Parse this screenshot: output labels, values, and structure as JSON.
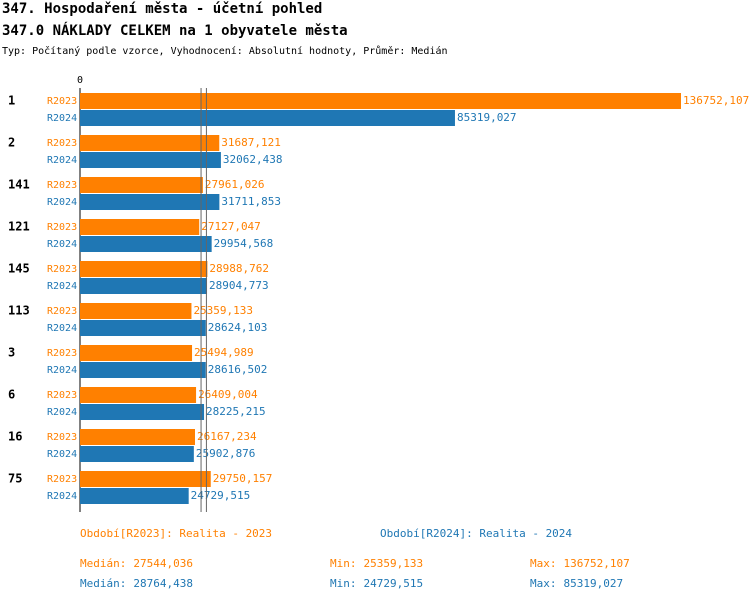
{
  "chart_data": {
    "type": "bar",
    "title": "347. Hospodaření města - účetní pohled",
    "subtitle": "347.0 NÁKLADY CELKEM na 1 obyvatele města",
    "note": "Typ: Počítaný podle vzorce, Vyhodnocení: Absolutní hodnoty, Průměr: Medián",
    "categories": [
      "1",
      "2",
      "141",
      "121",
      "145",
      "113",
      "3",
      "6",
      "16",
      "75"
    ],
    "xlim": [
      0,
      136752.107
    ],
    "xticks": [
      0
    ],
    "stat_names": [
      "Medián:",
      "Min:",
      "Max:"
    ],
    "series": [
      {
        "name": "R2023",
        "legend": "Období[R2023]: Realita - 2023",
        "color": "#ff8000",
        "values": [
          136752.107,
          31687.121,
          27961.026,
          27127.047,
          28988.762,
          25359.133,
          25494.989,
          26409.004,
          26167.234,
          29750.157
        ],
        "value_labels": [
          "136752,107",
          "31687,121",
          "27961,026",
          "27127,047",
          "28988,762",
          "25359,133",
          "25494,989",
          "26409,004",
          "26167,234",
          "29750,157"
        ],
        "median": 27544.036,
        "median_label": "27544,036",
        "min": 25359.133,
        "min_label": "25359,133",
        "max": 136752.107,
        "max_label": "136752,107"
      },
      {
        "name": "R2024",
        "legend": "Období[R2024]: Realita - 2024",
        "color": "#1f77b4",
        "values": [
          85319.027,
          32062.438,
          31711.853,
          29954.568,
          28904.773,
          28624.103,
          28616.502,
          28225.215,
          25902.876,
          24729.515
        ],
        "value_labels": [
          "85319,027",
          "32062,438",
          "31711,853",
          "29954,568",
          "28904,773",
          "28624,103",
          "28616,502",
          "28225,215",
          "25902,876",
          "24729,515"
        ],
        "median": 28764.438,
        "median_label": "28764,438",
        "min": 24729.515,
        "min_label": "24729,515",
        "max": 85319.027,
        "max_label": "85319,027"
      }
    ]
  }
}
